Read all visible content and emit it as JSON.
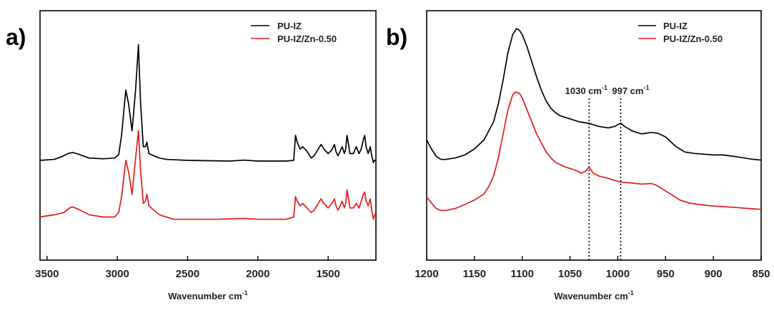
{
  "chart_data": [
    {
      "type": "line",
      "panel_label": "a)",
      "xlabel": "Wavenumber cm",
      "xlabel_sup": "-1",
      "ylabel": "",
      "xlim": [
        3550,
        1160
      ],
      "x_reversed": true,
      "y_axis_ticks": false,
      "xticks": [
        3500,
        3000,
        2500,
        2000,
        1500
      ],
      "legend": {
        "position": "top-right"
      },
      "series": [
        {
          "name": "PU-IZ",
          "color": "#000000",
          "points": [
            [
              3550,
              0.09
            ],
            [
              3450,
              0.094
            ],
            [
              3400,
              0.105
            ],
            [
              3350,
              0.12
            ],
            [
              3320,
              0.125
            ],
            [
              3280,
              0.118
            ],
            [
              3200,
              0.1
            ],
            [
              3100,
              0.097
            ],
            [
              3020,
              0.1
            ],
            [
              2990,
              0.115
            ],
            [
              2970,
              0.2
            ],
            [
              2940,
              0.4
            ],
            [
              2920,
              0.34
            ],
            [
              2895,
              0.22
            ],
            [
              2870,
              0.4
            ],
            [
              2850,
              0.6
            ],
            [
              2835,
              0.35
            ],
            [
              2815,
              0.15
            ],
            [
              2800,
              0.15
            ],
            [
              2790,
              0.17
            ],
            [
              2775,
              0.12
            ],
            [
              2740,
              0.11
            ],
            [
              2700,
              0.1
            ],
            [
              2650,
              0.094
            ],
            [
              2500,
              0.09
            ],
            [
              2200,
              0.087
            ],
            [
              2100,
              0.091
            ],
            [
              2000,
              0.087
            ],
            [
              1800,
              0.087
            ],
            [
              1745,
              0.09
            ],
            [
              1732,
              0.2
            ],
            [
              1720,
              0.17
            ],
            [
              1700,
              0.14
            ],
            [
              1680,
              0.15
            ],
            [
              1650,
              0.13
            ],
            [
              1620,
              0.1
            ],
            [
              1600,
              0.11
            ],
            [
              1580,
              0.13
            ],
            [
              1550,
              0.16
            ],
            [
              1530,
              0.14
            ],
            [
              1500,
              0.12
            ],
            [
              1475,
              0.135
            ],
            [
              1455,
              0.16
            ],
            [
              1445,
              0.13
            ],
            [
              1430,
              0.11
            ],
            [
              1415,
              0.13
            ],
            [
              1400,
              0.15
            ],
            [
              1385,
              0.12
            ],
            [
              1375,
              0.14
            ],
            [
              1366,
              0.2
            ],
            [
              1355,
              0.16
            ],
            [
              1345,
              0.12
            ],
            [
              1320,
              0.12
            ],
            [
              1300,
              0.15
            ],
            [
              1280,
              0.12
            ],
            [
              1265,
              0.14
            ],
            [
              1250,
              0.18
            ],
            [
              1240,
              0.2
            ],
            [
              1230,
              0.15
            ],
            [
              1215,
              0.12
            ],
            [
              1200,
              0.15
            ],
            [
              1190,
              0.11
            ],
            [
              1178,
              0.08
            ],
            [
              1170,
              0.09
            ],
            [
              1160,
              0.09
            ]
          ]
        },
        {
          "name": "PU-IZ/Zn-0.50",
          "color": "#e31a1c",
          "points": [
            [
              3550,
              -0.16
            ],
            [
              3450,
              -0.15
            ],
            [
              3380,
              -0.14
            ],
            [
              3340,
              -0.12
            ],
            [
              3320,
              -0.115
            ],
            [
              3280,
              -0.125
            ],
            [
              3200,
              -0.15
            ],
            [
              3100,
              -0.16
            ],
            [
              3020,
              -0.16
            ],
            [
              2990,
              -0.14
            ],
            [
              2970,
              -0.07
            ],
            [
              2940,
              0.09
            ],
            [
              2920,
              0.04
            ],
            [
              2895,
              -0.06
            ],
            [
              2870,
              0.1
            ],
            [
              2850,
              0.22
            ],
            [
              2835,
              0.05
            ],
            [
              2815,
              -0.1
            ],
            [
              2800,
              -0.09
            ],
            [
              2790,
              -0.06
            ],
            [
              2775,
              -0.11
            ],
            [
              2740,
              -0.13
            ],
            [
              2700,
              -0.15
            ],
            [
              2600,
              -0.17
            ],
            [
              2300,
              -0.17
            ],
            [
              2100,
              -0.166
            ],
            [
              2000,
              -0.17
            ],
            [
              1800,
              -0.17
            ],
            [
              1745,
              -0.16
            ],
            [
              1732,
              -0.07
            ],
            [
              1720,
              -0.09
            ],
            [
              1700,
              -0.11
            ],
            [
              1680,
              -0.1
            ],
            [
              1650,
              -0.12
            ],
            [
              1620,
              -0.14
            ],
            [
              1600,
              -0.13
            ],
            [
              1580,
              -0.11
            ],
            [
              1550,
              -0.08
            ],
            [
              1530,
              -0.1
            ],
            [
              1500,
              -0.12
            ],
            [
              1475,
              -0.1
            ],
            [
              1455,
              -0.08
            ],
            [
              1445,
              -0.11
            ],
            [
              1430,
              -0.13
            ],
            [
              1415,
              -0.11
            ],
            [
              1400,
              -0.09
            ],
            [
              1385,
              -0.12
            ],
            [
              1375,
              -0.1
            ],
            [
              1366,
              -0.04
            ],
            [
              1355,
              -0.08
            ],
            [
              1345,
              -0.12
            ],
            [
              1320,
              -0.12
            ],
            [
              1300,
              -0.1
            ],
            [
              1280,
              -0.12
            ],
            [
              1265,
              -0.09
            ],
            [
              1250,
              -0.06
            ],
            [
              1240,
              -0.05
            ],
            [
              1230,
              -0.09
            ],
            [
              1215,
              -0.11
            ],
            [
              1200,
              -0.08
            ],
            [
              1190,
              -0.13
            ],
            [
              1178,
              -0.17
            ],
            [
              1170,
              -0.15
            ],
            [
              1160,
              -0.15
            ]
          ]
        }
      ]
    },
    {
      "type": "line",
      "panel_label": "b)",
      "xlabel": "Wavenumber cm",
      "xlabel_sup": "-1",
      "ylabel": "",
      "xlim": [
        1200,
        850
      ],
      "x_reversed": true,
      "y_axis_ticks": false,
      "xticks": [
        1200,
        1150,
        1100,
        1050,
        1000,
        950,
        900,
        850
      ],
      "legend": {
        "position": "top-right"
      },
      "annotations": [
        {
          "text": "1030 cm",
          "sup": "-1",
          "x": 1030
        },
        {
          "text": "997 cm",
          "sup": "-1",
          "x": 997
        }
      ],
      "series": [
        {
          "name": "PU-IZ",
          "color": "#000000",
          "points": [
            [
              1200,
              0.5
            ],
            [
              1195,
              0.47
            ],
            [
              1190,
              0.445
            ],
            [
              1185,
              0.435
            ],
            [
              1180,
              0.435
            ],
            [
              1170,
              0.44
            ],
            [
              1160,
              0.45
            ],
            [
              1150,
              0.47
            ],
            [
              1140,
              0.5
            ],
            [
              1130,
              0.56
            ],
            [
              1125,
              0.62
            ],
            [
              1120,
              0.7
            ],
            [
              1115,
              0.79
            ],
            [
              1110,
              0.85
            ],
            [
              1106,
              0.87
            ],
            [
              1103,
              0.865
            ],
            [
              1100,
              0.85
            ],
            [
              1095,
              0.81
            ],
            [
              1090,
              0.76
            ],
            [
              1085,
              0.71
            ],
            [
              1080,
              0.665
            ],
            [
              1075,
              0.63
            ],
            [
              1070,
              0.605
            ],
            [
              1065,
              0.59
            ],
            [
              1060,
              0.58
            ],
            [
              1050,
              0.57
            ],
            [
              1040,
              0.56
            ],
            [
              1030,
              0.555
            ],
            [
              1020,
              0.545
            ],
            [
              1010,
              0.54
            ],
            [
              1003,
              0.545
            ],
            [
              997,
              0.556
            ],
            [
              993,
              0.545
            ],
            [
              985,
              0.53
            ],
            [
              975,
              0.52
            ],
            [
              965,
              0.525
            ],
            [
              958,
              0.522
            ],
            [
              950,
              0.51
            ],
            [
              940,
              0.48
            ],
            [
              930,
              0.46
            ],
            [
              920,
              0.455
            ],
            [
              900,
              0.45
            ],
            [
              890,
              0.45
            ],
            [
              880,
              0.446
            ],
            [
              870,
              0.441
            ],
            [
              860,
              0.436
            ],
            [
              850,
              0.433
            ]
          ]
        },
        {
          "name": "PU-IZ/Zn-0.50",
          "color": "#e31a1c",
          "points": [
            [
              1200,
              0.31
            ],
            [
              1195,
              0.29
            ],
            [
              1190,
              0.272
            ],
            [
              1185,
              0.265
            ],
            [
              1180,
              0.265
            ],
            [
              1170,
              0.272
            ],
            [
              1160,
              0.285
            ],
            [
              1150,
              0.3
            ],
            [
              1140,
              0.32
            ],
            [
              1135,
              0.345
            ],
            [
              1130,
              0.38
            ],
            [
              1125,
              0.44
            ],
            [
              1120,
              0.52
            ],
            [
              1115,
              0.6
            ],
            [
              1110,
              0.65
            ],
            [
              1107,
              0.66
            ],
            [
              1103,
              0.655
            ],
            [
              1100,
              0.64
            ],
            [
              1095,
              0.6
            ],
            [
              1090,
              0.56
            ],
            [
              1085,
              0.52
            ],
            [
              1080,
              0.49
            ],
            [
              1075,
              0.46
            ],
            [
              1070,
              0.44
            ],
            [
              1065,
              0.425
            ],
            [
              1055,
              0.41
            ],
            [
              1045,
              0.4
            ],
            [
              1038,
              0.39
            ],
            [
              1034,
              0.395
            ],
            [
              1030,
              0.41
            ],
            [
              1026,
              0.39
            ],
            [
              1020,
              0.38
            ],
            [
              1010,
              0.372
            ],
            [
              1003,
              0.365
            ],
            [
              997,
              0.36
            ],
            [
              990,
              0.358
            ],
            [
              975,
              0.353
            ],
            [
              965,
              0.355
            ],
            [
              960,
              0.35
            ],
            [
              955,
              0.34
            ],
            [
              945,
              0.32
            ],
            [
              935,
              0.3
            ],
            [
              925,
              0.29
            ],
            [
              915,
              0.285
            ],
            [
              900,
              0.28
            ],
            [
              880,
              0.276
            ],
            [
              860,
              0.271
            ],
            [
              850,
              0.269
            ]
          ]
        }
      ]
    }
  ]
}
